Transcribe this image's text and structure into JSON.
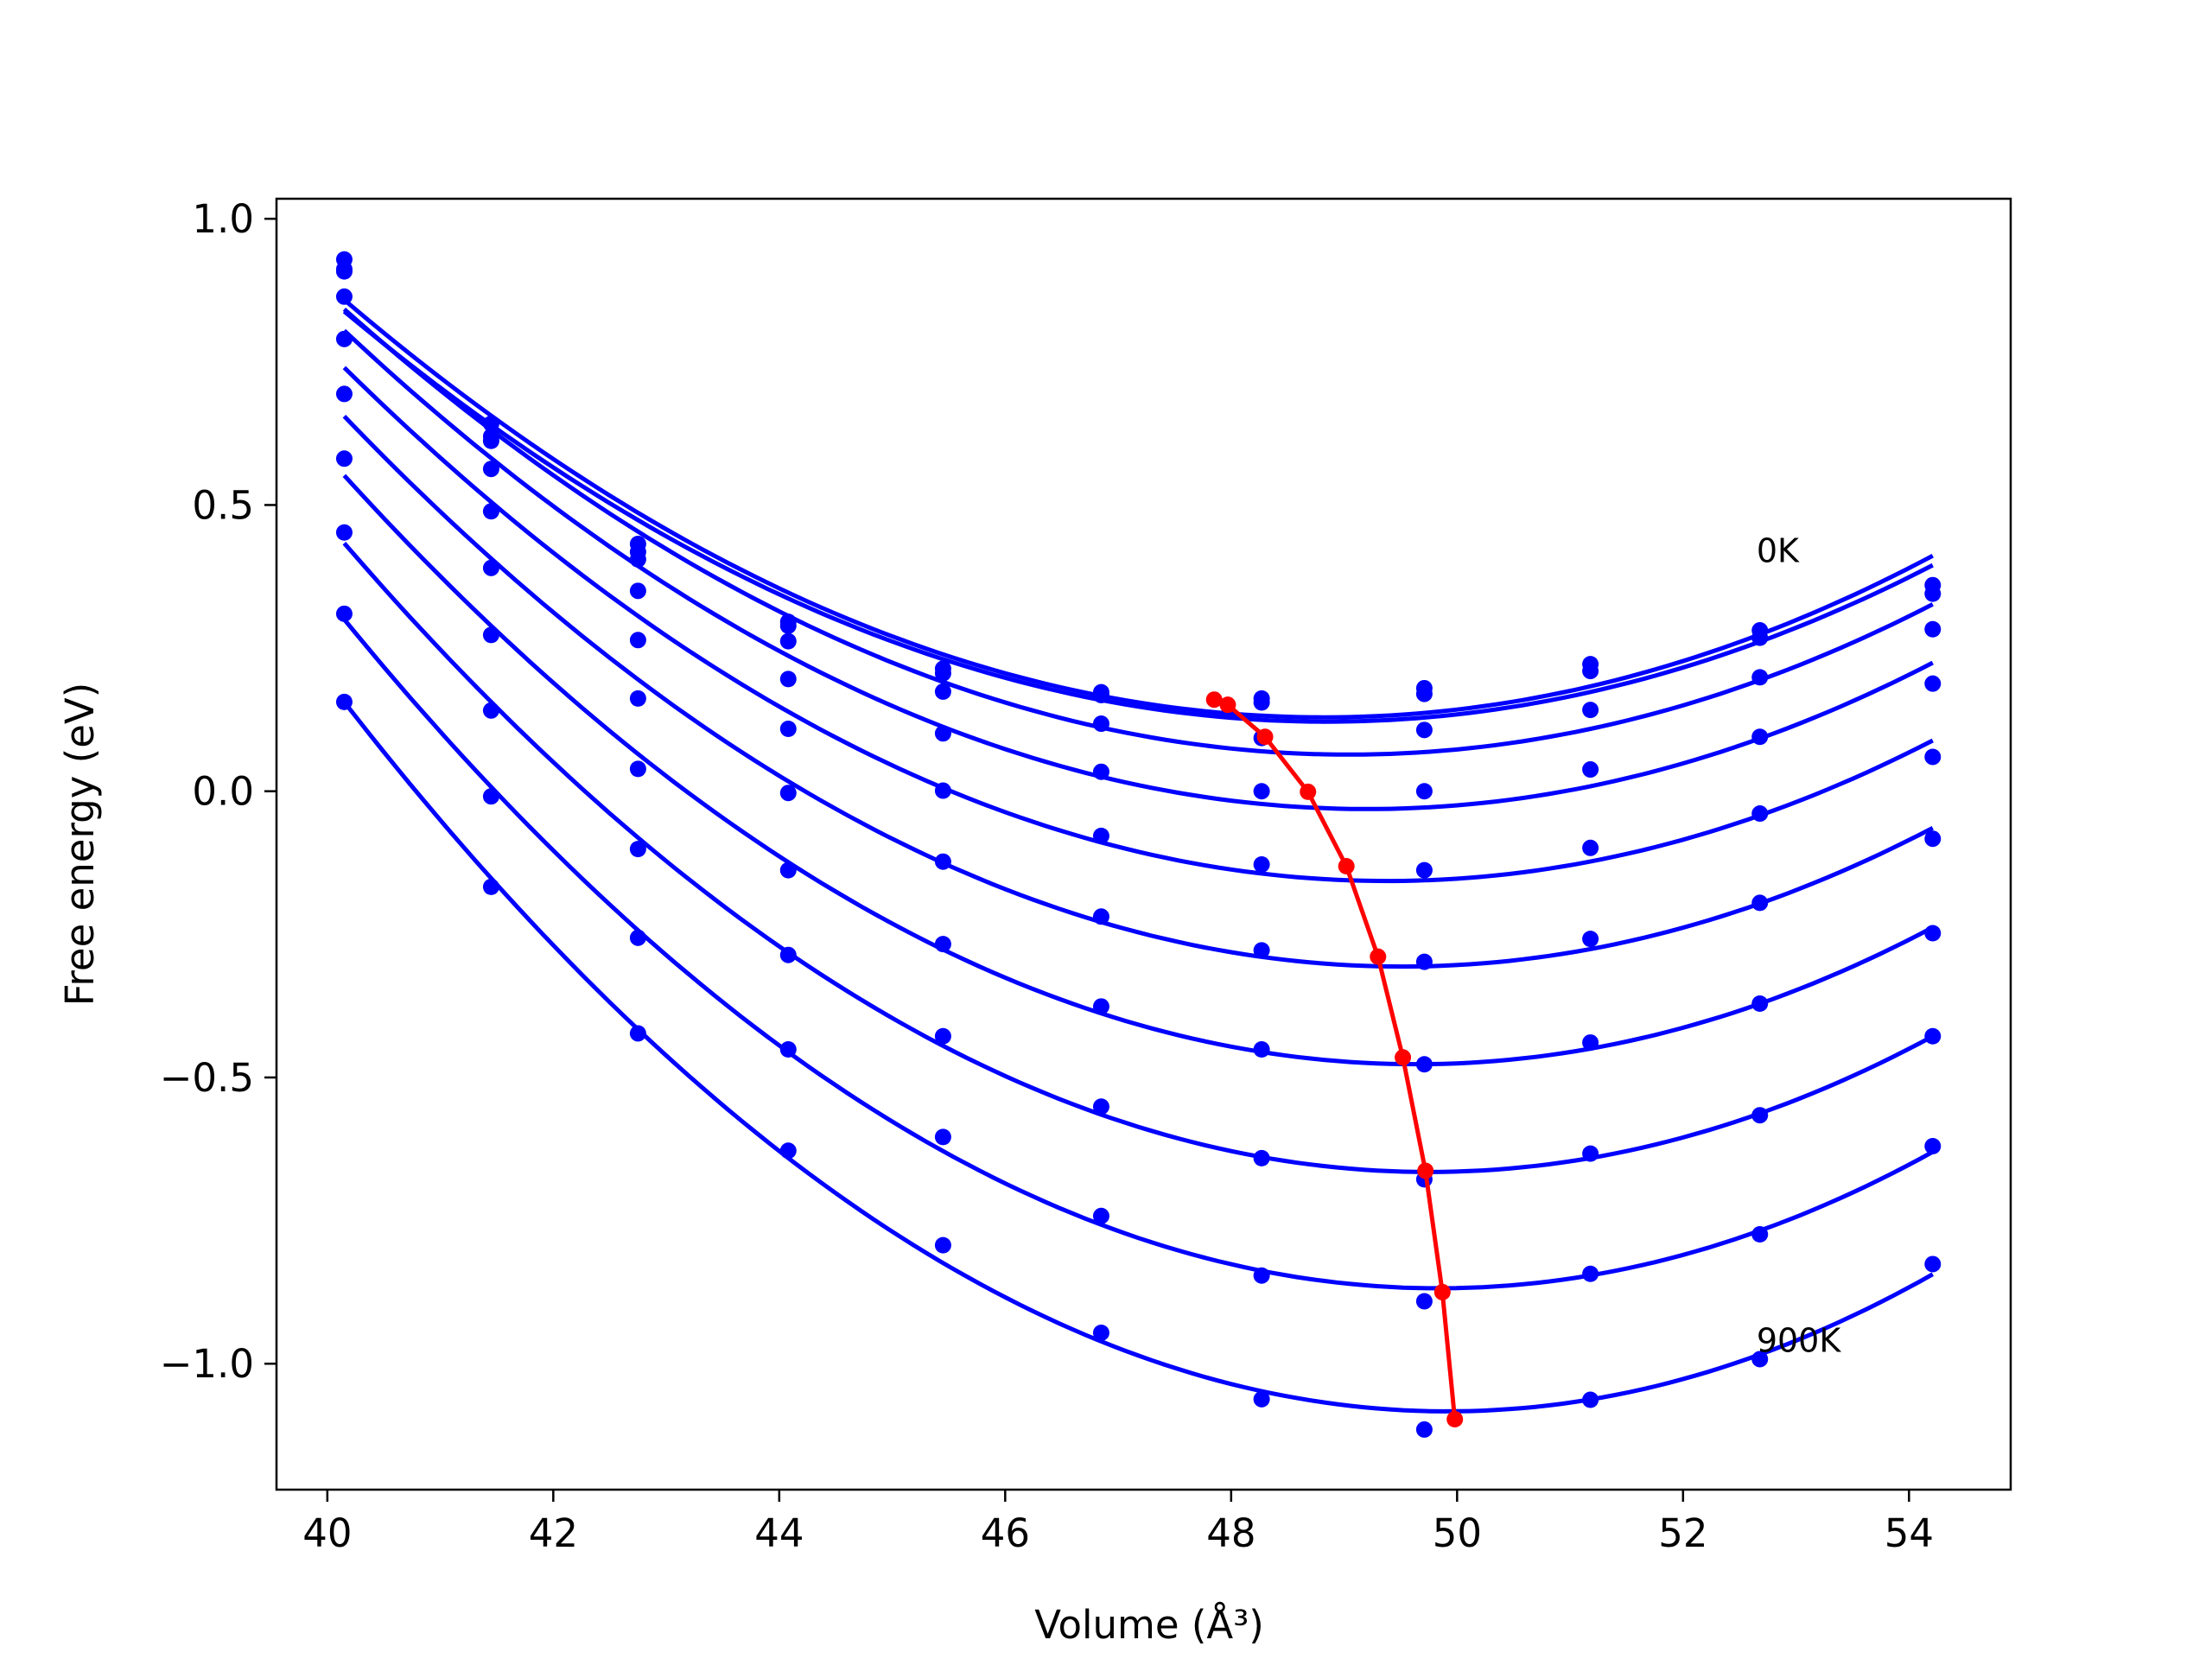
{
  "chart_data": {
    "type": "scatter",
    "title": "",
    "xlabel": "Volume (Å³)",
    "ylabel": "Free energy (eV)",
    "xlim": [
      39.55,
      54.9
    ],
    "ylim": [
      -1.22,
      1.035
    ],
    "xticks": [
      40,
      42,
      44,
      46,
      48,
      50,
      52,
      54
    ],
    "yticks": [
      -1.0,
      -0.5,
      0.0,
      0.5,
      1.0
    ],
    "xtick_labels": [
      "40",
      "42",
      "44",
      "46",
      "48",
      "50",
      "52",
      "54"
    ],
    "ytick_labels": [
      "−1.0",
      "−0.5",
      "0.0",
      "0.5",
      "1.0"
    ],
    "grid": false,
    "legend": "none",
    "colors": {
      "series": "#0000ff",
      "minima": "#ff0000"
    },
    "x": [
      40.15,
      41.45,
      42.75,
      44.08,
      45.45,
      46.85,
      48.27,
      49.71,
      51.18,
      52.68,
      54.21
    ],
    "series": [
      {
        "values": [
          0.929,
          0.642,
          0.432,
          0.296,
          0.214,
          0.173,
          0.162,
          0.18,
          0.222,
          0.281,
          0.36
        ]
      },
      {
        "values": [
          0.912,
          0.62,
          0.418,
          0.289,
          0.206,
          0.168,
          0.155,
          0.17,
          0.21,
          0.268,
          0.345
        ]
      },
      {
        "values": [
          0.908,
          0.612,
          0.405,
          0.262,
          0.174,
          0.118,
          0.093,
          0.107,
          0.142,
          0.199,
          0.283
        ]
      },
      {
        "values": [
          0.864,
          0.563,
          0.35,
          0.196,
          0.101,
          0.034,
          0.0,
          0.0,
          0.038,
          0.095,
          0.188
        ]
      },
      {
        "values": [
          0.79,
          0.489,
          0.264,
          0.109,
          0.001,
          -0.078,
          -0.128,
          -0.138,
          -0.099,
          -0.039,
          0.06
        ]
      },
      {
        "values": [
          0.694,
          0.39,
          0.162,
          -0.003,
          -0.123,
          -0.219,
          -0.278,
          -0.298,
          -0.258,
          -0.195,
          -0.083
        ]
      },
      {
        "values": [
          0.581,
          0.273,
          0.039,
          -0.138,
          -0.267,
          -0.376,
          -0.451,
          -0.477,
          -0.439,
          -0.371,
          -0.248
        ]
      },
      {
        "values": [
          0.452,
          0.141,
          -0.101,
          -0.286,
          -0.428,
          -0.551,
          -0.641,
          -0.678,
          -0.633,
          -0.566,
          -0.428
        ]
      },
      {
        "values": [
          0.31,
          -0.009,
          -0.256,
          -0.451,
          -0.604,
          -0.742,
          -0.846,
          -0.891,
          -0.843,
          -0.774,
          -0.62
        ]
      },
      {
        "values": [
          0.156,
          -0.167,
          -0.423,
          -0.628,
          -0.793,
          -0.946,
          -1.062,
          -1.115,
          -1.063,
          -0.992,
          -0.826
        ]
      }
    ],
    "minima": {
      "x": [
        47.85,
        47.97,
        48.3,
        48.68,
        49.02,
        49.3,
        49.52,
        49.72,
        49.87,
        49.98
      ],
      "y": [
        0.16,
        0.151,
        0.095,
        -0.001,
        -0.131,
        -0.289,
        -0.465,
        -0.663,
        -0.875,
        -1.097
      ]
    },
    "annotations": [
      {
        "text": "0K",
        "x": 52.65,
        "y": 0.42
      },
      {
        "text": "900K",
        "x": 52.65,
        "y": -0.96
      }
    ]
  }
}
